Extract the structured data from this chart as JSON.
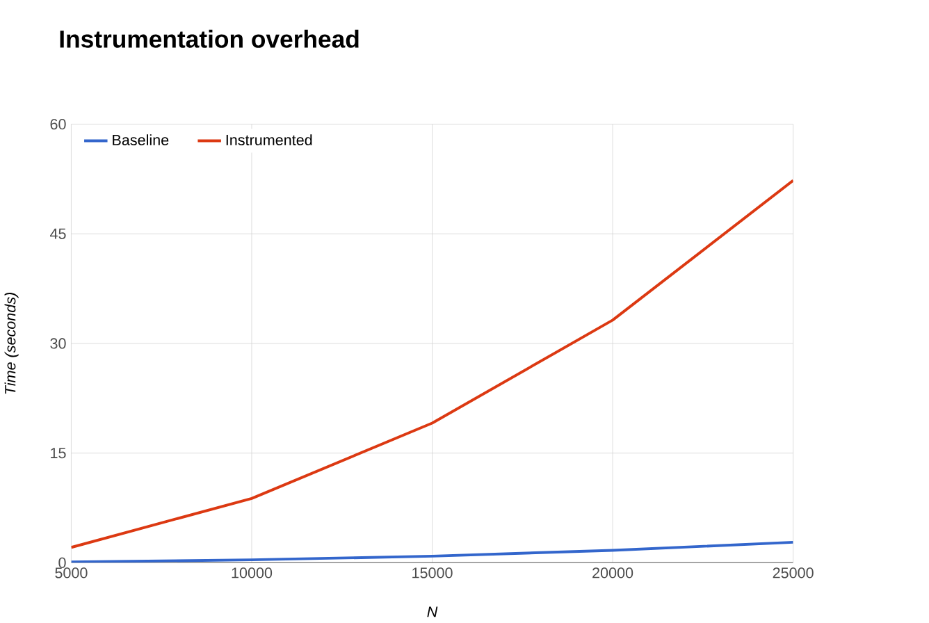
{
  "chart_data": {
    "type": "line",
    "title": "Instrumentation overhead",
    "xlabel": "*N*",
    "ylabel": "*Time (seconds)*",
    "x": [
      5000,
      10000,
      15000,
      20000,
      25000
    ],
    "series": [
      {
        "name": "Baseline",
        "color": "#3366cc",
        "values": [
          0.1,
          0.4,
          0.9,
          1.7,
          2.8
        ]
      },
      {
        "name": "Instrumented",
        "color": "#dc3912",
        "values": [
          2.1,
          8.8,
          19.1,
          33.2,
          52.3
        ]
      }
    ],
    "xlim": [
      5000,
      25000
    ],
    "ylim": [
      0,
      60
    ],
    "xticks": [
      5000,
      10000,
      15000,
      20000,
      25000
    ],
    "yticks": [
      0,
      15,
      30,
      45,
      60
    ],
    "grid": true,
    "legend": "top left",
    "marker": "none",
    "line_style": "solid"
  }
}
